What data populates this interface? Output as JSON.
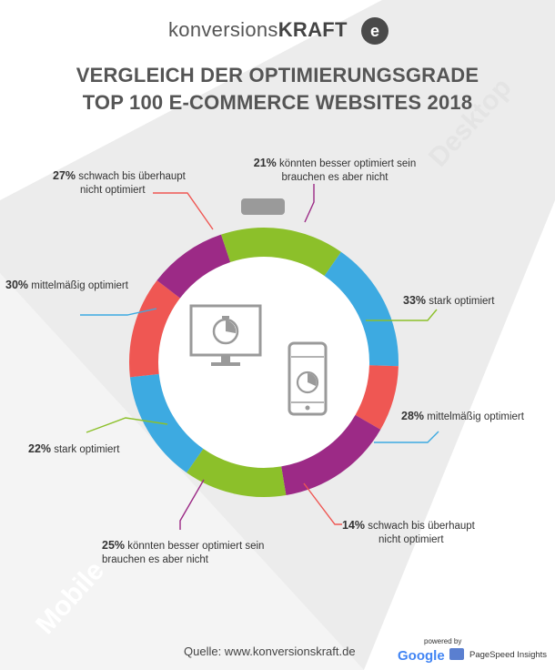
{
  "logo": {
    "brand_light": "konversions",
    "brand_bold": "KRAFT",
    "mark": "e"
  },
  "title": {
    "line1": "VERGLEICH DER OPTIMIERUNGSGRADE",
    "line2": "TOP 100 E-COMMERCE WEBSITES  2018"
  },
  "diagonal_labels": {
    "desktop": "Desktop",
    "mobile": "Mobile"
  },
  "source": "Quelle: www.konversionskraft.de",
  "footer": {
    "powered_by": "powered by",
    "google": "Google",
    "pagespeed": "PageSpeed Insights"
  },
  "icons": {
    "desktop": "desktop-monitor-icon",
    "mobile": "smartphone-icon"
  },
  "colors": {
    "green": "#8cc02a",
    "blue": "#3daae1",
    "red": "#ef5753",
    "purple": "#9c2a86",
    "gray_bg": "#ececec"
  },
  "chart_data": [
    {
      "type": "pie",
      "name": "Desktop",
      "slices": [
        {
          "label": "stark optimiert",
          "value": 33,
          "pct": "33%",
          "color": "#8cc02a"
        },
        {
          "label": "mittelmäßig optimiert",
          "value": 30,
          "pct": "30%",
          "color": "#3daae1"
        },
        {
          "label": "schwach bis überhaupt nicht optimiert",
          "value": 27,
          "pct": "27%",
          "color": "#ef5753"
        },
        {
          "label": "könnten besser optimiert sein brauchen es aber nicht",
          "value": 21,
          "pct": "21%",
          "color": "#9c2a86"
        }
      ]
    },
    {
      "type": "pie",
      "name": "Mobile",
      "slices": [
        {
          "label": "stark optimiert",
          "value": 22,
          "pct": "22%",
          "color": "#8cc02a"
        },
        {
          "label": "mittelmäßig optimiert",
          "value": 28,
          "pct": "28%",
          "color": "#3daae1"
        },
        {
          "label": "schwach bis überhaupt nicht optimiert",
          "value": 14,
          "pct": "14%",
          "color": "#ef5753"
        },
        {
          "label": "könnten besser optimiert sein brauchen es aber nicht",
          "value": 25,
          "pct": "25%",
          "color": "#9c2a86"
        }
      ]
    }
  ],
  "labels": {
    "d_purple": {
      "pct": "21%",
      "l1": "könnten besser optimiert sein",
      "l2": "brauchen es aber nicht"
    },
    "d_red": {
      "pct": "27%",
      "l1": "schwach bis überhaupt",
      "l2": "nicht optimiert"
    },
    "d_blue": {
      "pct": "30%",
      "l1": "mittelmäßig optimiert"
    },
    "d_green": {
      "pct": "33%",
      "l1": "stark optimiert"
    },
    "m_blue": {
      "pct": "28%",
      "l1": "mittelmäßig optimiert"
    },
    "m_green": {
      "pct": "22%",
      "l1": "stark optimiert"
    },
    "m_red": {
      "pct": "14%",
      "l1": "schwach bis überhaupt",
      "l2": "nicht optimiert"
    },
    "m_purple": {
      "pct": "25%",
      "l1": "könnten besser optimiert sein",
      "l2": "brauchen es aber nicht"
    }
  }
}
